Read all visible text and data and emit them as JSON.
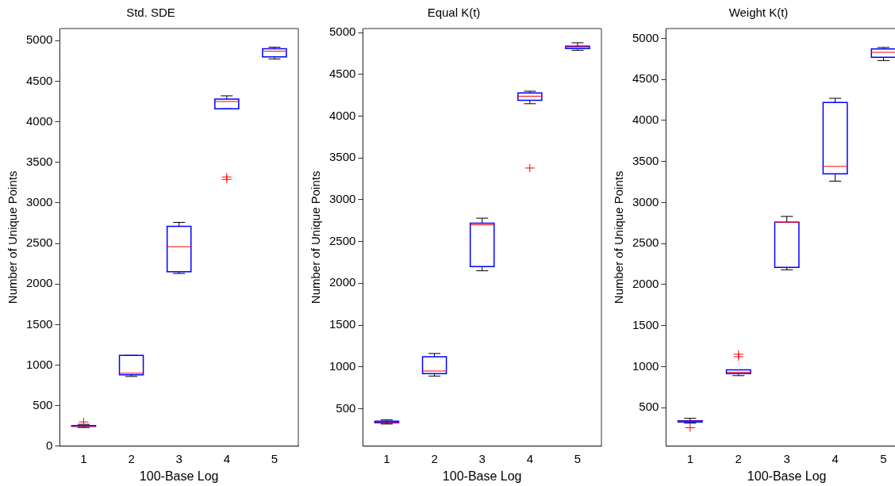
{
  "chart_data": [
    {
      "type": "box",
      "title": "Std. SDE",
      "xlabel": "100-Base Log",
      "ylabel": "Number of Unique Points",
      "categories": [
        "1",
        "2",
        "3",
        "4",
        "5"
      ],
      "ylim": [
        0,
        5150
      ],
      "yticks": [
        0,
        500,
        1000,
        1500,
        2000,
        2500,
        3000,
        3500,
        4000,
        4500,
        5000
      ],
      "grid": false,
      "color": "#0000ff",
      "boxes": [
        {
          "low": 230,
          "q1": 245,
          "median": 250,
          "q3": 255,
          "high": 270,
          "outliers": [
            300
          ]
        },
        {
          "low": 860,
          "q1": 880,
          "median": 900,
          "q3": 1120,
          "high": 1120
        },
        {
          "low": 2130,
          "q1": 2150,
          "median": 2460,
          "q3": 2710,
          "high": 2760
        },
        {
          "low": 4160,
          "q1": 4160,
          "median": 4250,
          "q3": 4280,
          "high": 4320,
          "outliers": [
            3290,
            3320
          ]
        },
        {
          "low": 4775,
          "q1": 4800,
          "median": 4870,
          "q3": 4900,
          "high": 4920
        }
      ]
    },
    {
      "type": "box",
      "title": "Equal K(t)",
      "xlabel": "100-Base Log",
      "ylabel": "Number of Unique Points",
      "categories": [
        "1",
        "2",
        "3",
        "4",
        "5"
      ],
      "ylim": [
        50,
        5050
      ],
      "yticks": [
        500,
        1000,
        1500,
        2000,
        2500,
        3000,
        3500,
        4000,
        4500,
        5000
      ],
      "grid": false,
      "color": "#0000ff",
      "boxes": [
        {
          "low": 315,
          "q1": 330,
          "median": 340,
          "q3": 350,
          "high": 365
        },
        {
          "low": 890,
          "q1": 920,
          "median": 950,
          "q3": 1120,
          "high": 1160
        },
        {
          "low": 2150,
          "q1": 2200,
          "median": 2700,
          "q3": 2720,
          "high": 2780
        },
        {
          "low": 4150,
          "q1": 4190,
          "median": 4240,
          "q3": 4280,
          "high": 4300,
          "outliers": [
            3380
          ]
        },
        {
          "low": 4790,
          "q1": 4810,
          "median": 4830,
          "q3": 4840,
          "high": 4880
        }
      ]
    },
    {
      "type": "box",
      "title": "Weight K(t)",
      "xlabel": "100-Base Log",
      "ylabel": "Number of Unique Points",
      "categories": [
        "1",
        "2",
        "3",
        "4",
        "5"
      ],
      "ylim": [
        30,
        5120
      ],
      "yticks": [
        500,
        1000,
        1500,
        2000,
        2500,
        3000,
        3500,
        4000,
        4500,
        5000
      ],
      "grid": false,
      "color": "#0000ff",
      "boxes": [
        {
          "low": 310,
          "q1": 325,
          "median": 335,
          "q3": 340,
          "high": 370,
          "outliers": [
            255
          ]
        },
        {
          "low": 890,
          "q1": 915,
          "median": 930,
          "q3": 960,
          "high": 960,
          "outliers": [
            1120,
            1150
          ]
        },
        {
          "low": 2180,
          "q1": 2210,
          "median": 2760,
          "q3": 2760,
          "high": 2830
        },
        {
          "low": 3260,
          "q1": 3350,
          "median": 3440,
          "q3": 4220,
          "high": 4270
        },
        {
          "low": 4730,
          "q1": 4770,
          "median": 4830,
          "q3": 4870,
          "high": 4890
        }
      ]
    }
  ]
}
